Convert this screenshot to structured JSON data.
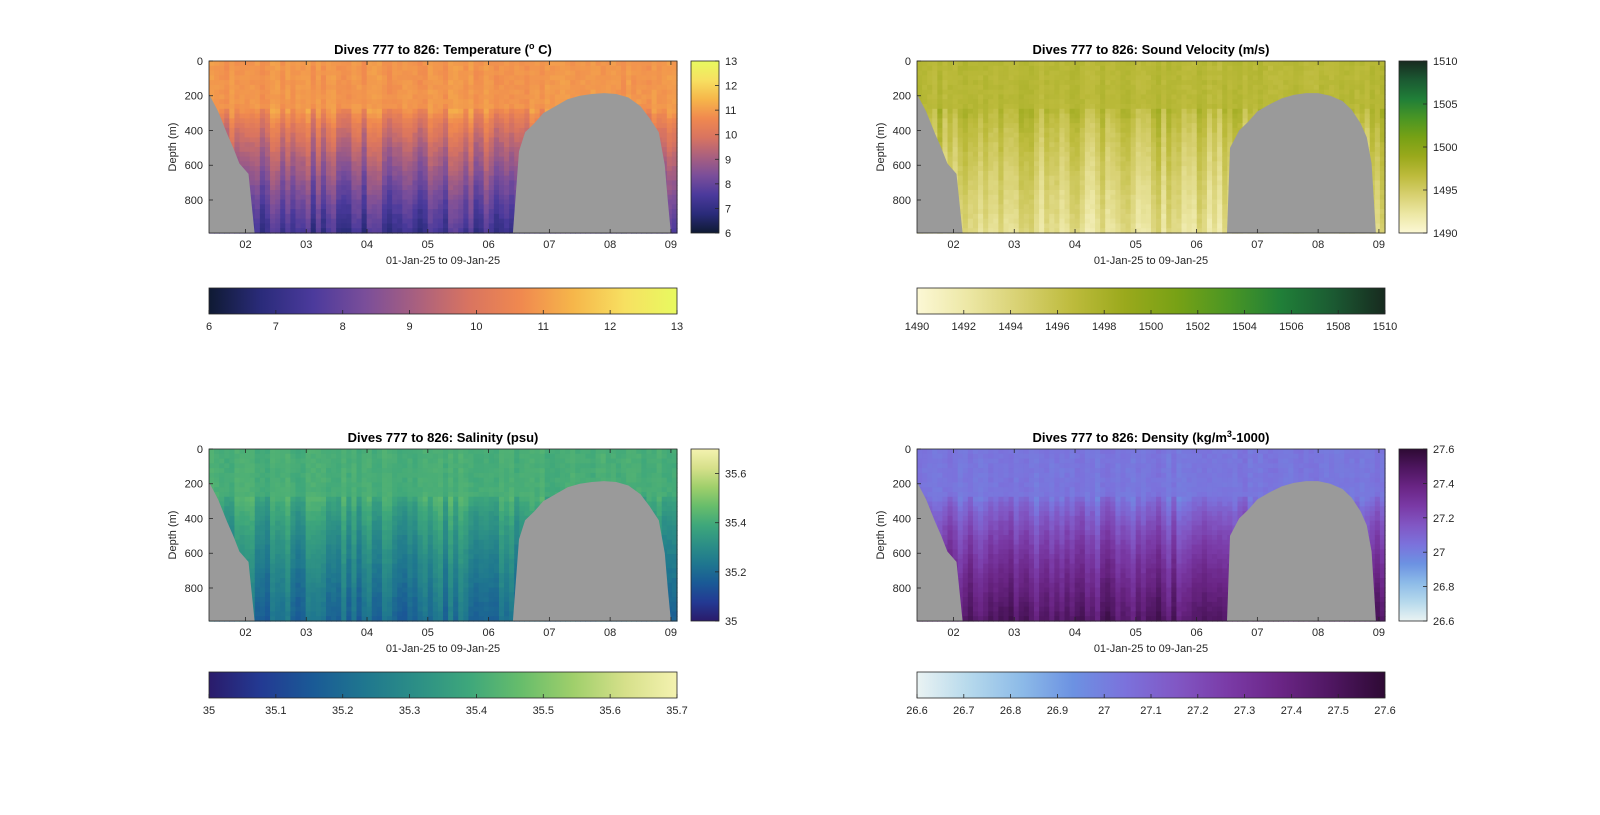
{
  "figure": {
    "panels_order": [
      "temperature",
      "sound_velocity",
      "salinity",
      "density"
    ]
  },
  "chart_data": [
    {
      "id": "temperature",
      "type": "heatmap",
      "title_main": "Dives 777 to 826: Temperature (",
      "title_sup": "o",
      "title_end": " C)",
      "xlabel": "01-Jan-25 to 09-Jan-25",
      "ylabel": "Depth (m)",
      "x_ticks": [
        "02",
        "03",
        "04",
        "05",
        "06",
        "07",
        "08",
        "09"
      ],
      "y_ticks": [
        "0",
        "200",
        "400",
        "600",
        "800"
      ],
      "xlim": [
        1.4,
        9.1
      ],
      "ylim": [
        0,
        990
      ],
      "y_reversed": true,
      "clim": [
        6,
        13
      ],
      "side_colorbar_ticks": [
        "6",
        "7",
        "8",
        "9",
        "10",
        "11",
        "12",
        "13"
      ],
      "bottom_colorbar_ticks": [
        "6",
        "7",
        "8",
        "9",
        "10",
        "11",
        "12",
        "13"
      ],
      "colormap": [
        "#0f1a33",
        "#2a2b7a",
        "#4b3a9c",
        "#7a4e9a",
        "#a9607f",
        "#d97460",
        "#f0894f",
        "#f6b64a",
        "#f7e061",
        "#e8fa60"
      ],
      "surface_value": 10.9,
      "thermocline_top": 280,
      "deep_value": 7.3,
      "bottom_depth": [
        {
          "x": 1.4,
          "d": 190
        },
        {
          "x": 1.55,
          "d": 290
        },
        {
          "x": 1.7,
          "d": 420
        },
        {
          "x": 1.8,
          "d": 500
        },
        {
          "x": 1.9,
          "d": 590
        },
        {
          "x": 2.05,
          "d": 650
        },
        {
          "x": 2.15,
          "d": 990
        },
        {
          "x": 6.4,
          "d": 990
        },
        {
          "x": 6.5,
          "d": 520
        },
        {
          "x": 6.6,
          "d": 410
        },
        {
          "x": 6.75,
          "d": 360
        },
        {
          "x": 6.9,
          "d": 300
        },
        {
          "x": 7.1,
          "d": 260
        },
        {
          "x": 7.3,
          "d": 220
        },
        {
          "x": 7.5,
          "d": 200
        },
        {
          "x": 7.7,
          "d": 190
        },
        {
          "x": 7.9,
          "d": 185
        },
        {
          "x": 8.1,
          "d": 190
        },
        {
          "x": 8.3,
          "d": 210
        },
        {
          "x": 8.5,
          "d": 260
        },
        {
          "x": 8.65,
          "d": 330
        },
        {
          "x": 8.8,
          "d": 410
        },
        {
          "x": 8.9,
          "d": 600
        },
        {
          "x": 8.95,
          "d": 810
        },
        {
          "x": 9.0,
          "d": 990
        },
        {
          "x": 9.1,
          "d": 990
        }
      ]
    },
    {
      "id": "sound_velocity",
      "type": "heatmap",
      "title_main": "Dives 777 to 826: Sound Velocity (m/s)",
      "title_sup": "",
      "title_end": "",
      "xlabel": "01-Jan-25 to 09-Jan-25",
      "ylabel": "Depth (m)",
      "x_ticks": [
        "02",
        "03",
        "04",
        "05",
        "06",
        "07",
        "08",
        "09"
      ],
      "y_ticks": [
        "0",
        "200",
        "400",
        "600",
        "800"
      ],
      "xlim": [
        1.4,
        9.1
      ],
      "ylim": [
        0,
        990
      ],
      "y_reversed": true,
      "clim": [
        1490,
        1510
      ],
      "side_colorbar_ticks": [
        "1490",
        "1495",
        "1500",
        "1505",
        "1510"
      ],
      "bottom_colorbar_ticks": [
        "1490",
        "1492",
        "1494",
        "1496",
        "1498",
        "1500",
        "1502",
        "1504",
        "1506",
        "1508",
        "1510"
      ],
      "colormap": [
        "#fcf8d5",
        "#ece7a4",
        "#d7d070",
        "#bdbb3c",
        "#9aa91c",
        "#77a115",
        "#4a9624",
        "#207f38",
        "#1b5a32",
        "#172a1f"
      ],
      "surface_value": 1497,
      "thermocline_top": 280,
      "deep_value": 1493,
      "bottom_depth": [
        {
          "x": 1.4,
          "d": 190
        },
        {
          "x": 1.55,
          "d": 290
        },
        {
          "x": 1.7,
          "d": 420
        },
        {
          "x": 1.8,
          "d": 500
        },
        {
          "x": 1.9,
          "d": 590
        },
        {
          "x": 2.05,
          "d": 650
        },
        {
          "x": 2.15,
          "d": 990
        },
        {
          "x": 6.5,
          "d": 990
        },
        {
          "x": 6.55,
          "d": 500
        },
        {
          "x": 6.7,
          "d": 400
        },
        {
          "x": 6.85,
          "d": 350
        },
        {
          "x": 7.0,
          "d": 290
        },
        {
          "x": 7.2,
          "d": 250
        },
        {
          "x": 7.4,
          "d": 215
        },
        {
          "x": 7.6,
          "d": 195
        },
        {
          "x": 7.8,
          "d": 185
        },
        {
          "x": 8.0,
          "d": 185
        },
        {
          "x": 8.2,
          "d": 200
        },
        {
          "x": 8.4,
          "d": 230
        },
        {
          "x": 8.55,
          "d": 280
        },
        {
          "x": 8.7,
          "d": 360
        },
        {
          "x": 8.8,
          "d": 440
        },
        {
          "x": 8.88,
          "d": 590
        },
        {
          "x": 8.95,
          "d": 990
        },
        {
          "x": 9.1,
          "d": 990
        }
      ]
    },
    {
      "id": "salinity",
      "type": "heatmap",
      "title_main": "Dives 777 to 826: Salinity (psu)",
      "title_sup": "",
      "title_end": "",
      "xlabel": "01-Jan-25 to 09-Jan-25",
      "ylabel": "Depth (m)",
      "x_ticks": [
        "02",
        "03",
        "04",
        "05",
        "06",
        "07",
        "08",
        "09"
      ],
      "y_ticks": [
        "0",
        "200",
        "400",
        "600",
        "800"
      ],
      "xlim": [
        1.4,
        9.1
      ],
      "ylim": [
        0,
        990
      ],
      "y_reversed": true,
      "clim": [
        35.0,
        35.7
      ],
      "side_colorbar_ticks": [
        "35",
        "35.2",
        "35.4",
        "35.6"
      ],
      "side_colorbar_tick_values": [
        35.0,
        35.2,
        35.4,
        35.6
      ],
      "bottom_colorbar_ticks": [
        "35",
        "35.1",
        "35.2",
        "35.3",
        "35.4",
        "35.5",
        "35.6",
        "35.7"
      ],
      "colormap": [
        "#2a1b6b",
        "#233a93",
        "#1a5a96",
        "#1f778f",
        "#2c8f86",
        "#3ea77b",
        "#67bd6b",
        "#9fcf6b",
        "#d6e08a",
        "#f4f2b0"
      ],
      "surface_value": 35.41,
      "thermocline_top": 280,
      "deep_value": 35.2,
      "bottom_depth": [
        {
          "x": 1.4,
          "d": 190
        },
        {
          "x": 1.55,
          "d": 290
        },
        {
          "x": 1.7,
          "d": 420
        },
        {
          "x": 1.8,
          "d": 500
        },
        {
          "x": 1.9,
          "d": 590
        },
        {
          "x": 2.05,
          "d": 650
        },
        {
          "x": 2.15,
          "d": 990
        },
        {
          "x": 6.4,
          "d": 990
        },
        {
          "x": 6.5,
          "d": 520
        },
        {
          "x": 6.6,
          "d": 410
        },
        {
          "x": 6.75,
          "d": 360
        },
        {
          "x": 6.9,
          "d": 300
        },
        {
          "x": 7.1,
          "d": 260
        },
        {
          "x": 7.3,
          "d": 220
        },
        {
          "x": 7.5,
          "d": 200
        },
        {
          "x": 7.7,
          "d": 190
        },
        {
          "x": 7.9,
          "d": 185
        },
        {
          "x": 8.1,
          "d": 190
        },
        {
          "x": 8.3,
          "d": 210
        },
        {
          "x": 8.5,
          "d": 260
        },
        {
          "x": 8.65,
          "d": 330
        },
        {
          "x": 8.8,
          "d": 410
        },
        {
          "x": 8.9,
          "d": 600
        },
        {
          "x": 8.95,
          "d": 810
        },
        {
          "x": 9.0,
          "d": 990
        },
        {
          "x": 9.1,
          "d": 990
        }
      ]
    },
    {
      "id": "density",
      "type": "heatmap",
      "title_main": "Dives 777 to 826: Density (kg/m",
      "title_sup": "3",
      "title_end": "-1000)",
      "xlabel": "01-Jan-25 to 09-Jan-25",
      "ylabel": "Depth (m)",
      "x_ticks": [
        "02",
        "03",
        "04",
        "05",
        "06",
        "07",
        "08",
        "09"
      ],
      "y_ticks": [
        "0",
        "200",
        "400",
        "600",
        "800"
      ],
      "xlim": [
        1.4,
        9.1
      ],
      "ylim": [
        0,
        990
      ],
      "y_reversed": true,
      "clim": [
        26.6,
        27.6
      ],
      "side_colorbar_ticks": [
        "26.6",
        "26.8",
        "27",
        "27.2",
        "27.4",
        "27.6"
      ],
      "bottom_colorbar_ticks": [
        "26.6",
        "26.7",
        "26.8",
        "26.9",
        "27",
        "27.1",
        "27.2",
        "27.3",
        "27.4",
        "27.5",
        "27.6"
      ],
      "colormap": [
        "#eaf3f3",
        "#b6d9ec",
        "#8dbbe8",
        "#6c92e2",
        "#7b72dc",
        "#8157c4",
        "#7a3aa6",
        "#6a2585",
        "#4e1660",
        "#2e0a34"
      ],
      "surface_value": 27.03,
      "thermocline_top": 280,
      "deep_value": 27.47,
      "bottom_depth": [
        {
          "x": 1.4,
          "d": 190
        },
        {
          "x": 1.55,
          "d": 290
        },
        {
          "x": 1.7,
          "d": 420
        },
        {
          "x": 1.8,
          "d": 500
        },
        {
          "x": 1.9,
          "d": 590
        },
        {
          "x": 2.05,
          "d": 650
        },
        {
          "x": 2.15,
          "d": 990
        },
        {
          "x": 6.5,
          "d": 990
        },
        {
          "x": 6.55,
          "d": 500
        },
        {
          "x": 6.7,
          "d": 400
        },
        {
          "x": 6.85,
          "d": 350
        },
        {
          "x": 7.0,
          "d": 290
        },
        {
          "x": 7.2,
          "d": 250
        },
        {
          "x": 7.4,
          "d": 215
        },
        {
          "x": 7.6,
          "d": 195
        },
        {
          "x": 7.8,
          "d": 185
        },
        {
          "x": 8.0,
          "d": 185
        },
        {
          "x": 8.2,
          "d": 200
        },
        {
          "x": 8.4,
          "d": 230
        },
        {
          "x": 8.55,
          "d": 280
        },
        {
          "x": 8.7,
          "d": 360
        },
        {
          "x": 8.8,
          "d": 440
        },
        {
          "x": 8.88,
          "d": 590
        },
        {
          "x": 8.95,
          "d": 990
        },
        {
          "x": 9.1,
          "d": 990
        }
      ]
    }
  ],
  "colors": {
    "land_mask": "#9a9a9a",
    "axis": "#262626",
    "background": "#ffffff"
  }
}
